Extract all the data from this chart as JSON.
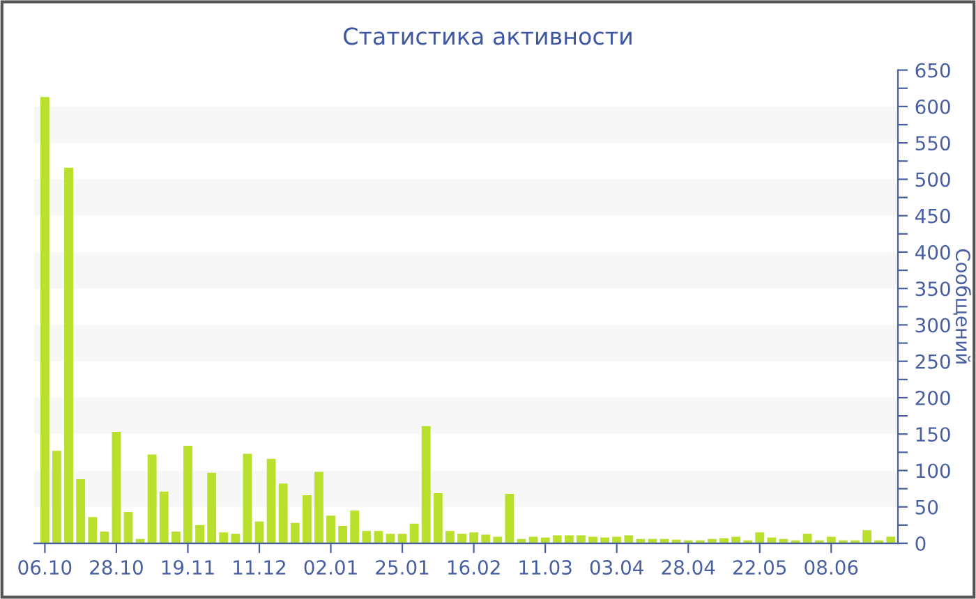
{
  "chart_data": {
    "type": "bar",
    "title": "Статистика активности",
    "ylabel": "Сообщений",
    "categories": [
      "06.10",
      null,
      null,
      null,
      null,
      null,
      "28.10",
      null,
      null,
      null,
      null,
      null,
      "19.11",
      null,
      null,
      null,
      null,
      null,
      "11.12",
      null,
      null,
      null,
      null,
      null,
      "02.01",
      null,
      null,
      null,
      null,
      null,
      "25.01",
      null,
      null,
      null,
      null,
      null,
      "16.02",
      null,
      null,
      null,
      null,
      null,
      "11.03",
      null,
      null,
      null,
      null,
      null,
      "03.04",
      null,
      null,
      null,
      null,
      null,
      "28.04",
      null,
      null,
      null,
      null,
      null,
      "22.05",
      null,
      null,
      null,
      null,
      null,
      "08.06",
      null,
      null,
      null,
      null,
      null
    ],
    "values": [
      613,
      127,
      516,
      88,
      36,
      16,
      153,
      43,
      6,
      122,
      71,
      16,
      134,
      25,
      97,
      15,
      13,
      123,
      30,
      116,
      82,
      28,
      66,
      98,
      38,
      24,
      45,
      17,
      17,
      13,
      13,
      27,
      161,
      69,
      17,
      13,
      15,
      12,
      9,
      68,
      6,
      9,
      8,
      11,
      11,
      11,
      9,
      8,
      9,
      11,
      6,
      6,
      6,
      5,
      4,
      4,
      6,
      7,
      9,
      4,
      15,
      8,
      6,
      4,
      13,
      4,
      9,
      4,
      4,
      18,
      4,
      9
    ],
    "color": "#b8e02c",
    "ylim": [
      0,
      650
    ],
    "yticks": [
      0,
      {
        "value": 25,
        "label": null
      },
      50,
      {
        "value": 75,
        "label": null
      },
      100,
      {
        "value": 125,
        "label": null
      },
      150,
      {
        "value": 175,
        "label": null
      },
      200,
      {
        "value": 225,
        "label": null
      },
      250,
      {
        "value": 275,
        "label": null
      },
      300,
      {
        "value": 325,
        "label": null
      },
      350,
      {
        "value": 375,
        "label": null
      },
      400,
      {
        "value": 425,
        "label": null
      },
      450,
      {
        "value": 475,
        "label": null
      },
      500,
      {
        "value": 525,
        "label": null
      },
      550,
      {
        "value": 575,
        "label": null
      },
      600,
      {
        "value": 625,
        "label": null
      },
      650
    ],
    "bands": [
      {
        "axis": "y",
        "from": 50,
        "to": 100,
        "color": "#f7f7f7"
      },
      {
        "axis": "y",
        "from": 150,
        "to": 200,
        "color": "#f7f7f7"
      },
      {
        "axis": "y",
        "from": 250,
        "to": 300,
        "color": "#f7f7f7"
      },
      {
        "axis": "y",
        "from": 350,
        "to": 400,
        "color": "#f7f7f7"
      },
      {
        "axis": "y",
        "from": 450,
        "to": 500,
        "color": "#f7f7f7"
      },
      {
        "axis": "y",
        "from": 550,
        "to": 600,
        "color": "#f7f7f7"
      }
    ],
    "grid": false,
    "legend": false
  }
}
